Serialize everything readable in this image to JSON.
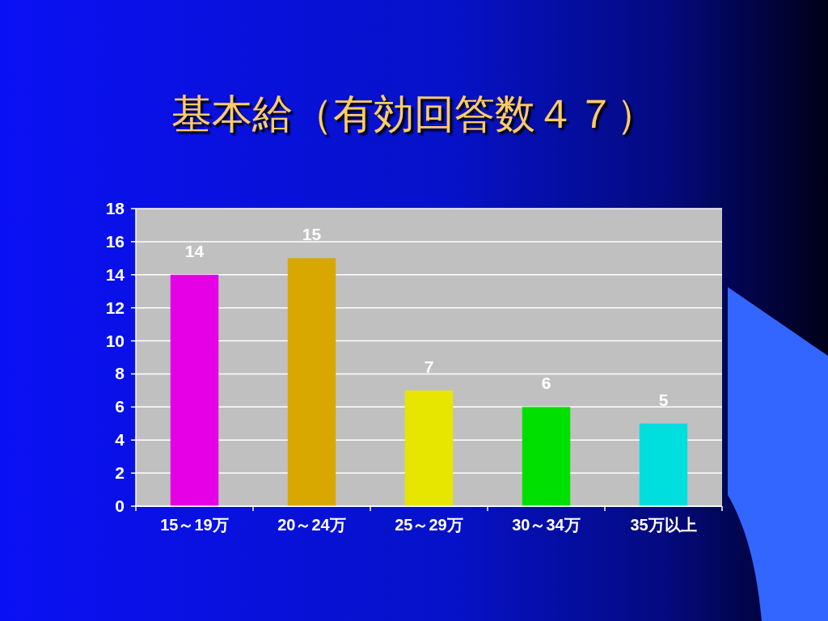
{
  "chart_data": {
    "type": "bar",
    "title": "基本給（有効回答数４７）",
    "categories": [
      "15～19万",
      "20～24万",
      "25～29万",
      "30～34万",
      "35万以上"
    ],
    "values": [
      14,
      15,
      7,
      6,
      5
    ],
    "colors": [
      "#e600e6",
      "#d9a800",
      "#e6e600",
      "#00e000",
      "#00dede"
    ],
    "ylim": [
      0,
      18
    ],
    "yticks": [
      0,
      2,
      4,
      6,
      8,
      10,
      12,
      14,
      16,
      18
    ],
    "grid": "y",
    "data_labels": true
  }
}
